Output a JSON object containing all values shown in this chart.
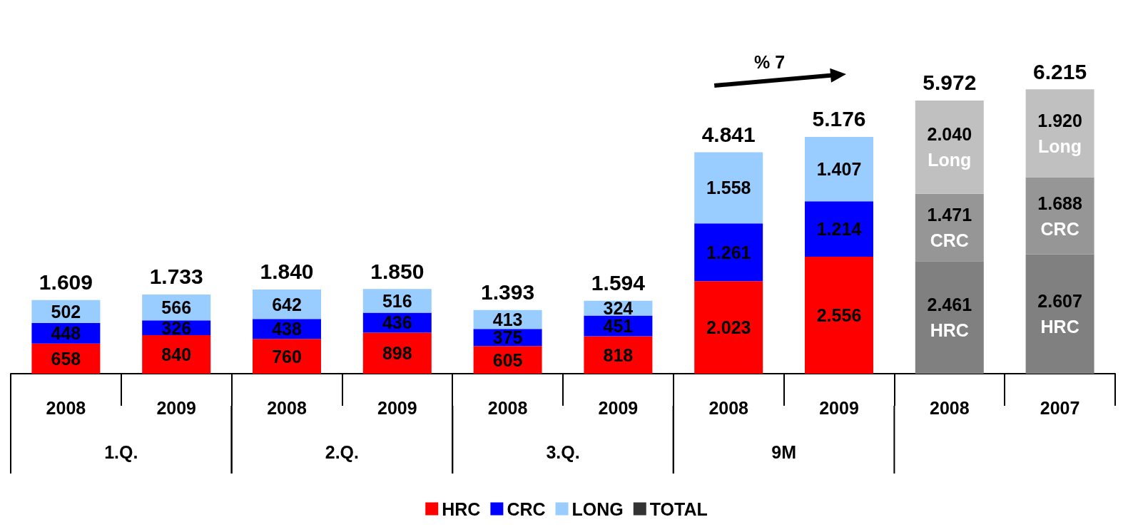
{
  "chart_data": {
    "type": "bar",
    "stacked": true,
    "categories": [
      "2008",
      "2009",
      "2008",
      "2009",
      "2008",
      "2009",
      "2008",
      "2009",
      "2008",
      "2007"
    ],
    "series": [
      {
        "name": "HRC",
        "color": "#ff0000",
        "colors": [
          "#ff0000",
          "#ff0000",
          "#ff0000",
          "#ff0000",
          "#ff0000",
          "#ff0000",
          "#ff0000",
          "#ff0000",
          "#808080",
          "#808080"
        ],
        "values": [
          658,
          840,
          760,
          898,
          605,
          818,
          2023,
          2556,
          2461,
          2607
        ],
        "value_labels": [
          "658",
          "840",
          "760",
          "898",
          "605",
          "818",
          "2.023",
          "2.556",
          "2.461\nHRC",
          "2.607\nHRC"
        ]
      },
      {
        "name": "CRC",
        "color": "#0000ff",
        "colors": [
          "#0000ff",
          "#0000ff",
          "#0000ff",
          "#0000ff",
          "#0000ff",
          "#0000ff",
          "#0000ff",
          "#0000ff",
          "#969696",
          "#969696"
        ],
        "values": [
          448,
          326,
          438,
          436,
          375,
          451,
          1261,
          1214,
          1471,
          1688
        ],
        "value_labels": [
          "448",
          "326",
          "438",
          "436",
          "375",
          "451",
          "1.261",
          "1.214",
          "1.471\nCRC",
          "1.688\nCRC"
        ]
      },
      {
        "name": "LONG",
        "color": "#99ccff",
        "colors": [
          "#99ccff",
          "#99ccff",
          "#99ccff",
          "#99ccff",
          "#99ccff",
          "#99ccff",
          "#99ccff",
          "#99ccff",
          "#c0c0c0",
          "#c0c0c0"
        ],
        "values": [
          502,
          566,
          642,
          516,
          413,
          324,
          1558,
          1407,
          2040,
          1920
        ],
        "value_labels": [
          "502",
          "566",
          "642",
          "516",
          "413",
          "324",
          "1.558",
          "1.407",
          "2.040\nLong",
          "1.920\nLong"
        ]
      },
      {
        "name": "TOTAL",
        "type": "scatter",
        "color": "#000000",
        "values": [
          null,
          null,
          null,
          null,
          null,
          null,
          null,
          null,
          null,
          null
        ]
      }
    ],
    "totals": [
      "1.609",
      "1.733",
      "1.840",
      "1.850",
      "1.393",
      "1.594",
      "4.841",
      "5.176",
      "5.972",
      "6.215"
    ],
    "annotations": [
      "% 7",
      "1.Q.",
      "2.Q.",
      "3.Q.",
      "9M"
    ],
    "legend": "bottom",
    "tick_labels": "x",
    "grid": false
  }
}
